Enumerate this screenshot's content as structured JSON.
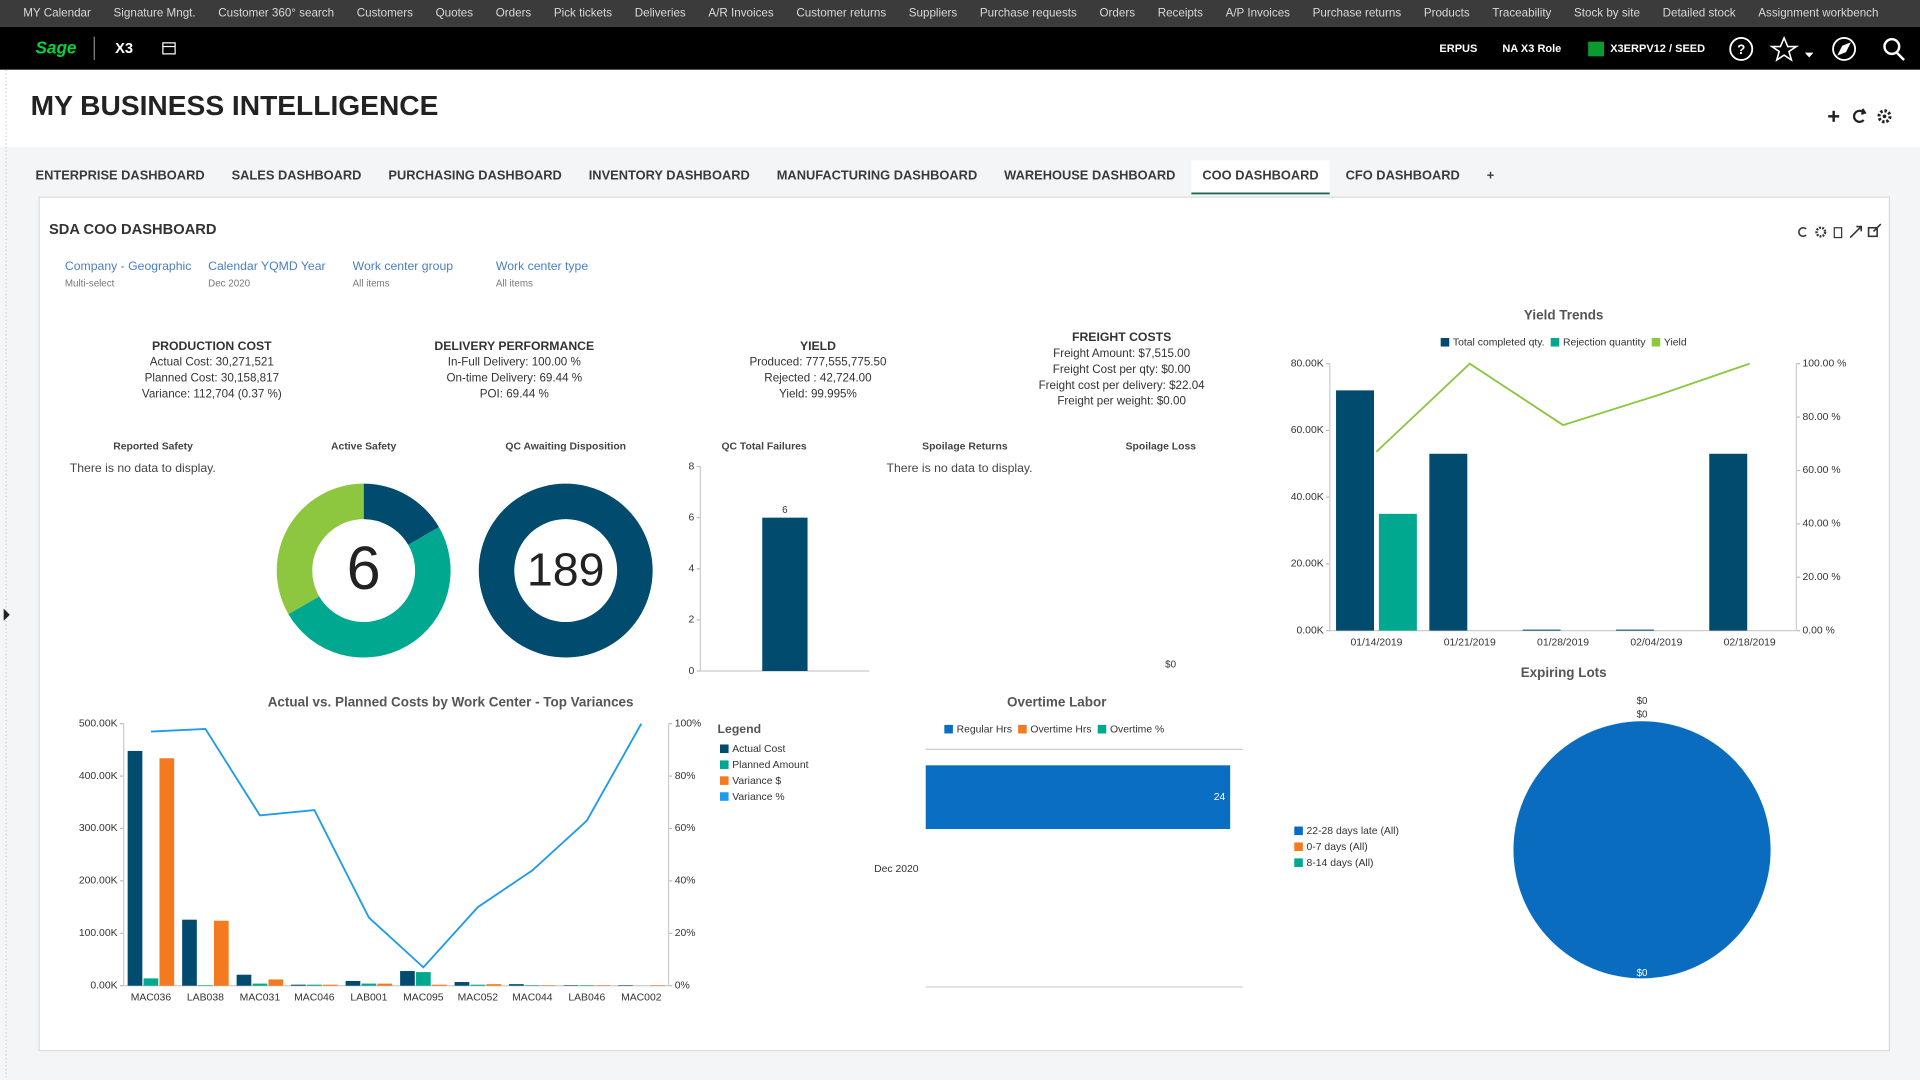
{
  "top_menu": [
    "MY Calendar",
    "Signature Mngt.",
    "Customer 360° search",
    "Customers",
    "Quotes",
    "Orders",
    "Pick tickets",
    "Deliveries",
    "A/R Invoices",
    "Customer returns",
    "Suppliers",
    "Purchase requests",
    "Orders",
    "Receipts",
    "A/P Invoices",
    "Purchase returns",
    "Products",
    "Traceability",
    "Stock by site",
    "Detailed stock",
    "Assignment workbench"
  ],
  "header": {
    "brand": "Sage",
    "product": "X3",
    "folder": "ERPUS",
    "role": "NA X3 Role",
    "endpoint": "X3ERPV12 / SEED"
  },
  "page_title": "MY BUSINESS INTELLIGENCE",
  "tabs": [
    "ENTERPRISE DASHBOARD",
    "SALES DASHBOARD",
    "PURCHASING DASHBOARD",
    "INVENTORY DASHBOARD",
    "MANUFACTURING DASHBOARD",
    "WAREHOUSE DASHBOARD",
    "COO DASHBOARD",
    "CFO DASHBOARD"
  ],
  "active_tab": 6,
  "add_tab": "+",
  "dashboard_title": "SDA COO DASHBOARD",
  "filters": [
    {
      "label": "Company - Geographic",
      "value": "Multi-select"
    },
    {
      "label": "Calendar YQMD Year",
      "value": "Dec 2020"
    },
    {
      "label": "Work center group",
      "value": "All items"
    },
    {
      "label": "Work center type",
      "value": "All items"
    }
  ],
  "kpis": [
    {
      "title": "PRODUCTION COST",
      "lines": [
        "Actual Cost: 30,271,521",
        "Planned Cost: 30,158,817",
        "Variance: 112,704 (0.37 %)"
      ]
    },
    {
      "title": "DELIVERY PERFORMANCE",
      "lines": [
        "In-Full Delivery: 100.00 %",
        "On-time Delivery: 69.44 %",
        "POI: 69.44 %"
      ]
    },
    {
      "title": "YIELD",
      "lines": [
        "Produced: 777,555,775.50",
        "Rejected : 42,724.00",
        "Yield: 99.995%"
      ]
    },
    {
      "title": "FREIGHT COSTS",
      "lines": [
        "Freight Amount: $7,515.00",
        "Freight Cost per qty: $0.00",
        "Freight cost per delivery: $22.04",
        "Freight per weight: $0.00"
      ]
    }
  ],
  "empty_widgets": [
    {
      "title": "Reported Safety",
      "message": "There is no data to display."
    },
    {
      "title": "Spoilage Returns",
      "message": "There is no data to display."
    }
  ],
  "active_safety": {
    "type": "donut",
    "title": "Active Safety",
    "values": [
      1,
      3,
      2
    ],
    "colors": [
      "#004b6e",
      "#00a88f",
      "#8dc63f"
    ],
    "center_value": 6
  },
  "qc_awaiting": {
    "type": "donut",
    "title": "QC Awaiting Disposition",
    "values": [
      189
    ],
    "colors": [
      "#004b6e"
    ],
    "center_value": 189
  },
  "qc_failures": {
    "type": "bar",
    "title": "QC Total Failures",
    "values": [
      6
    ],
    "color": "#004b6e",
    "ylim": [
      0,
      8
    ],
    "yticks": [
      0,
      2,
      4,
      6,
      8
    ]
  },
  "spoilage_loss": {
    "title": "Spoilage Loss",
    "text": "$0"
  },
  "yield_trends": {
    "type": "bar",
    "title": "Yield Trends",
    "categories": [
      "01/14/2019",
      "01/21/2019",
      "01/28/2019",
      "02/04/2019",
      "02/18/2019"
    ],
    "series": [
      {
        "name": "Total completed qty.",
        "color": "#004b6e",
        "values": [
          72000,
          53000,
          300,
          300,
          53000
        ]
      },
      {
        "name": "Rejection quantity",
        "color": "#00a88f",
        "values": [
          35000,
          0,
          0,
          0,
          0
        ]
      },
      {
        "name": "Yield",
        "color": "#8dc63f",
        "type": "line",
        "axis": "y2",
        "values": [
          67,
          100,
          77,
          88,
          100
        ]
      }
    ],
    "ylim": [
      0,
      80000
    ],
    "yticks": [
      {
        "value": 0,
        "label": "0.00K"
      },
      {
        "value": 20000,
        "label": "20.00K"
      },
      {
        "value": 40000,
        "label": "40.00K"
      },
      {
        "value": 60000,
        "label": "60.00K"
      },
      {
        "value": 80000,
        "label": "80.00K"
      }
    ],
    "y2lim": [
      0,
      100
    ],
    "y2ticks": [
      {
        "value": 0,
        "label": "0.00 %"
      },
      {
        "value": 20,
        "label": "20.00 %"
      },
      {
        "value": 40,
        "label": "40.00 %"
      },
      {
        "value": 60,
        "label": "60.00 %"
      },
      {
        "value": 80,
        "label": "80.00 %"
      },
      {
        "value": 100,
        "label": "100.00 %"
      }
    ]
  },
  "costs": {
    "type": "bar",
    "title": "Actual vs. Planned Costs by Work Center - Top Variances",
    "legend_title": "Legend",
    "categories": [
      "MAC036",
      "LAB038",
      "MAC031",
      "MAC046",
      "LAB001",
      "MAC095",
      "MAC052",
      "MAC044",
      "LAB046",
      "MAC002"
    ],
    "series": [
      {
        "name": "Actual Cost",
        "color": "#004b6e",
        "values": [
          448000,
          126000,
          21000,
          2000,
          9000,
          28000,
          7000,
          3000,
          1000,
          1000
        ]
      },
      {
        "name": "Planned Amount",
        "color": "#00a88f",
        "values": [
          14000,
          1000,
          4000,
          2000,
          4000,
          26000,
          2000,
          1000,
          1000,
          0
        ]
      },
      {
        "name": "Variance $",
        "color": "#f47a20",
        "values": [
          434000,
          124000,
          12000,
          2000,
          4000,
          2000,
          3000,
          1000,
          1000,
          1000
        ]
      },
      {
        "name": "Variance %",
        "color": "#1e9bea",
        "type": "line",
        "axis": "y2",
        "values": [
          97,
          98,
          65,
          67,
          26,
          7,
          30,
          44,
          63,
          100
        ]
      }
    ],
    "ylim": [
      0,
      500000
    ],
    "yticks": [
      {
        "value": 0,
        "label": "0.00K"
      },
      {
        "value": 100000,
        "label": "100.00K"
      },
      {
        "value": 200000,
        "label": "200.00K"
      },
      {
        "value": 300000,
        "label": "300.00K"
      },
      {
        "value": 400000,
        "label": "400.00K"
      },
      {
        "value": 500000,
        "label": "500.00K"
      }
    ],
    "y2lim": [
      0,
      100
    ],
    "y2ticks": [
      {
        "value": 0,
        "label": "0%"
      },
      {
        "value": 20,
        "label": "20%"
      },
      {
        "value": 40,
        "label": "40%"
      },
      {
        "value": 60,
        "label": "60%"
      },
      {
        "value": 80,
        "label": "80%"
      },
      {
        "value": 100,
        "label": "100%"
      }
    ]
  },
  "overtime": {
    "type": "bar",
    "orientation": "horizontal",
    "stacked": true,
    "title": "Overtime Labor",
    "categories": [
      "Dec 2020"
    ],
    "series": [
      {
        "name": "Regular Hrs",
        "color": "#0a6fc2",
        "values": [
          24
        ]
      },
      {
        "name": "Overtime Hrs",
        "color": "#f47a20",
        "values": [
          0
        ]
      },
      {
        "name": "Overtime %",
        "color": "#00a88f",
        "values": [
          0
        ]
      }
    ],
    "xlim": [
      0,
      25
    ]
  },
  "expiring_lots": {
    "type": "pie",
    "title": "Expiring Lots",
    "categories": [
      "22-28 days late (All)",
      "0-7 days (All)",
      "8-14 days (All)"
    ],
    "values": [
      0,
      0,
      0
    ],
    "value_labels": [
      "$0",
      "$0",
      "$0"
    ],
    "colors": [
      "#0a6cbe",
      "#f47a20",
      "#00a88f"
    ]
  }
}
